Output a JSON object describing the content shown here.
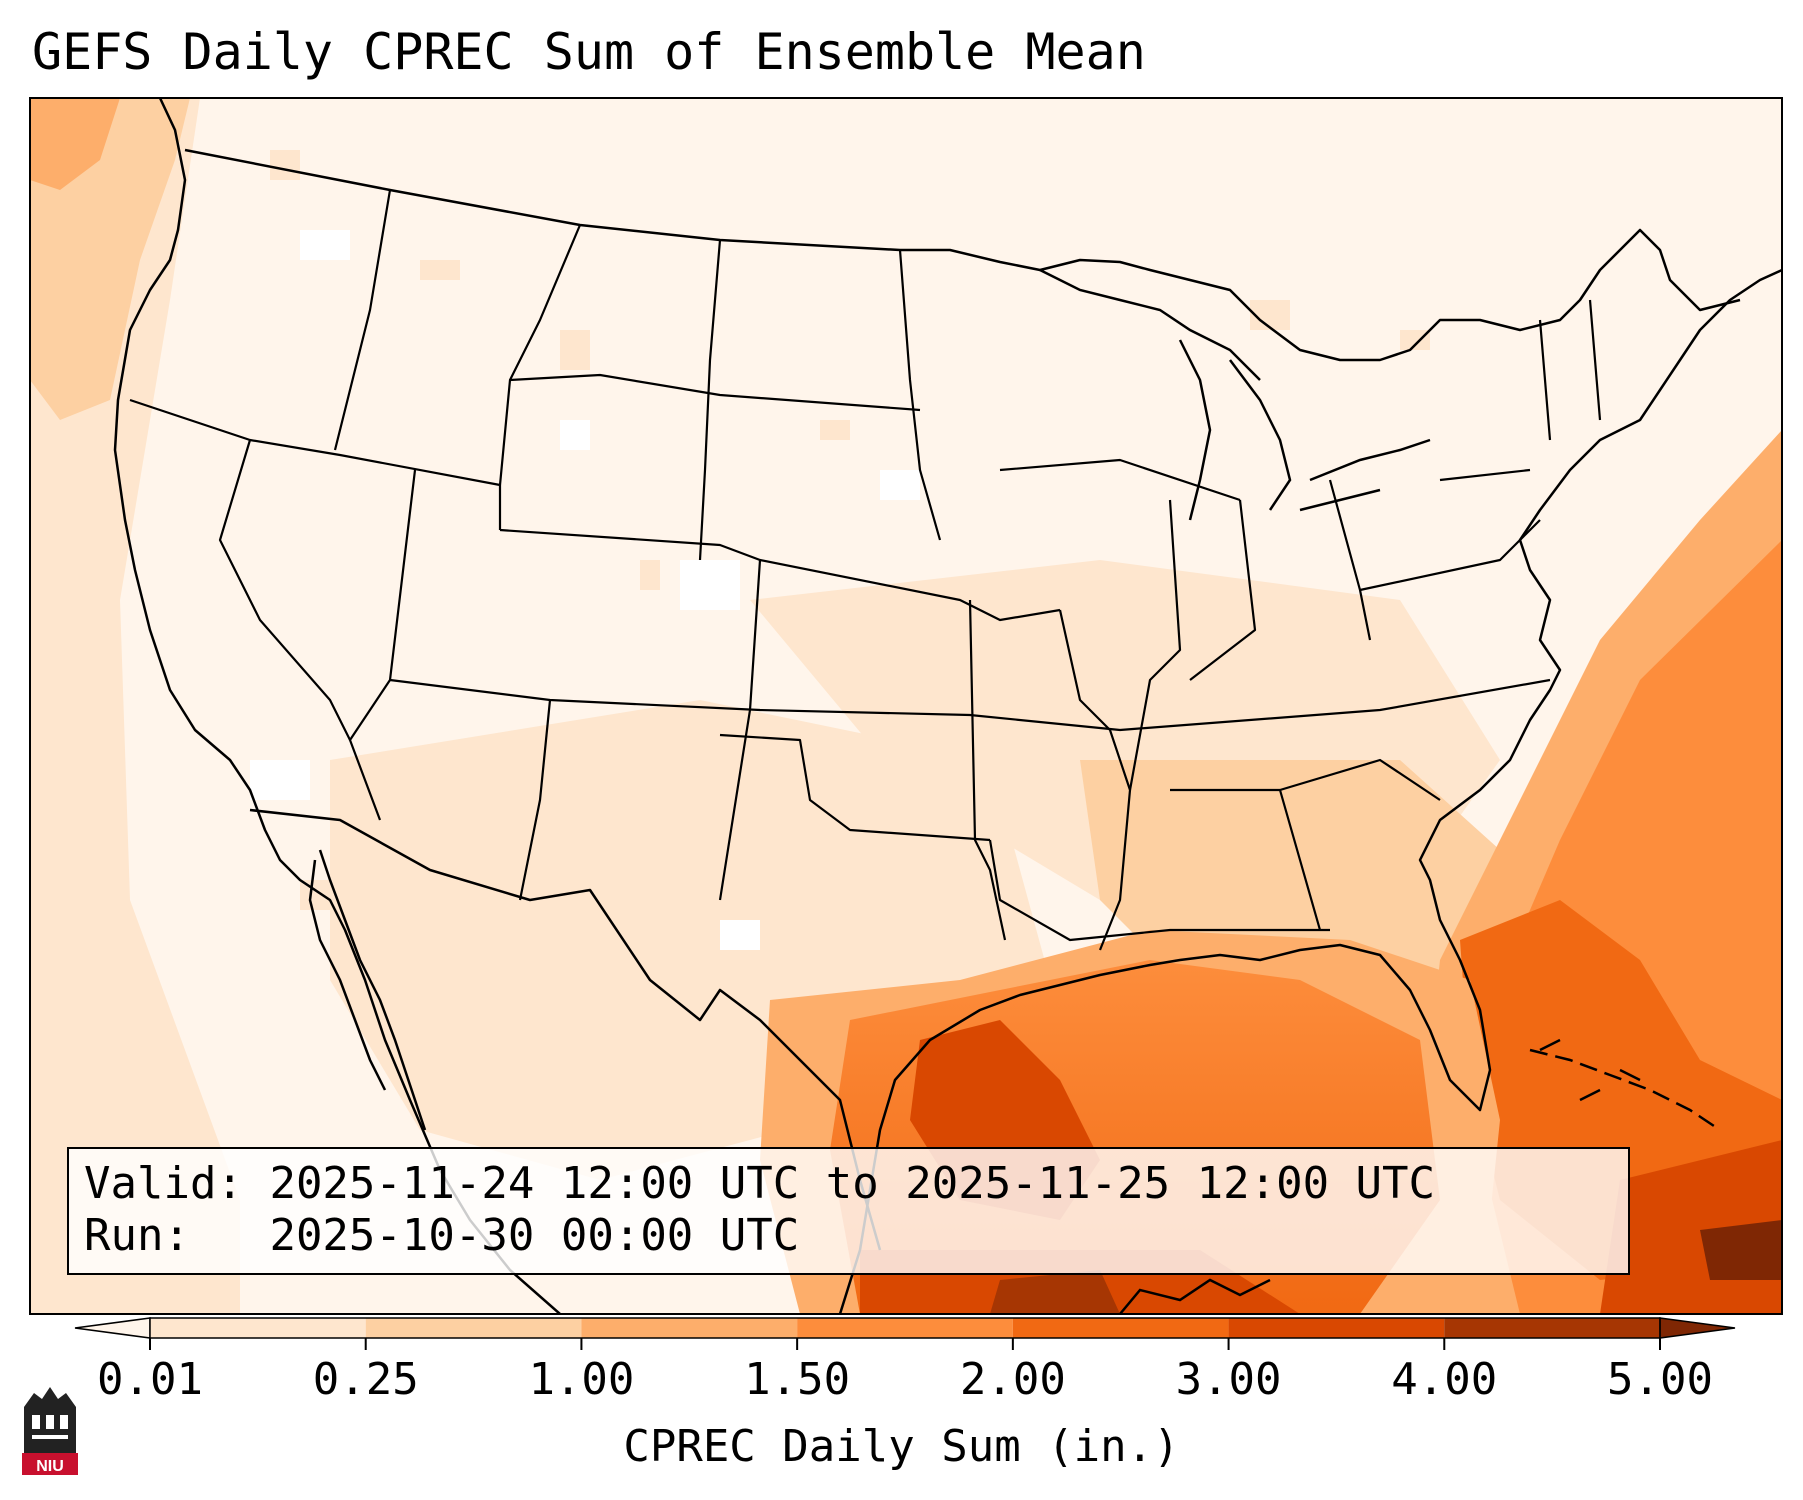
{
  "title": "GEFS Daily CPREC Sum of Ensemble Mean",
  "info": {
    "valid_label": "Valid:",
    "valid_text": "2025-11-24 12:00 UTC to 2025-11-25 12:00 UTC",
    "run_label": "Run:",
    "run_text": "2025-10-30 00:00 UTC"
  },
  "colorbar": {
    "title": "CPREC Daily Sum (in.)",
    "ticks": [
      "0.01",
      "0.25",
      "1.00",
      "1.50",
      "2.00",
      "3.00",
      "4.00",
      "5.00"
    ],
    "colors": [
      "#fff5eb",
      "#fee6ce",
      "#fdd0a2",
      "#fdae6b",
      "#fd8d3c",
      "#f16913",
      "#d94801",
      "#a63603",
      "#7f2704"
    ],
    "extend": "both"
  },
  "map_data": {
    "projection": "lambert-conformal",
    "region": "CONUS, northern Mexico, Gulf of Mexico, western Atlantic",
    "boundaries": [
      "coastlines",
      "international borders",
      "US state lines"
    ],
    "precip_features": [
      {
        "area": "Gulf of Mexico",
        "level": "2.00-4.00"
      },
      {
        "area": "Atlantic off Southeast coast",
        "level": "1.50-3.00"
      },
      {
        "area": "Northern Caribbean",
        "level": "4.00-5.00"
      },
      {
        "area": "Pacific Northwest coast",
        "level": "1.00-1.50"
      },
      {
        "area": "Western interior",
        "level": "0.01-0.25"
      }
    ]
  },
  "logo": {
    "text": "NIU"
  }
}
